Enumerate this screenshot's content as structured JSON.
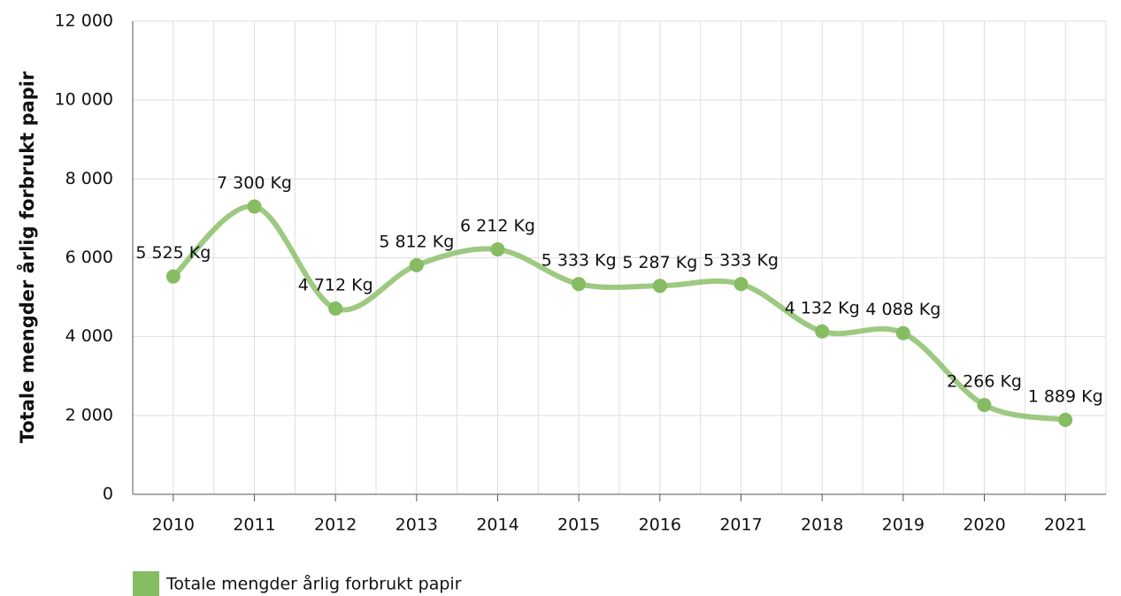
{
  "chart_data": {
    "type": "line",
    "ylabel": "Totale mengder årlig forbrukt papir",
    "categories": [
      "2010",
      "2011",
      "2012",
      "2013",
      "2014",
      "2015",
      "2016",
      "2017",
      "2018",
      "2019",
      "2020",
      "2021"
    ],
    "series": [
      {
        "name": "Totale mengder årlig forbrukt papir",
        "color": "#86bc62",
        "values": [
          5525,
          7300,
          4712,
          5812,
          6212,
          5333,
          5287,
          5333,
          4132,
          4088,
          2266,
          1889
        ],
        "value_labels": [
          "5 525 Kg",
          "7 300 Kg",
          "4 712 Kg",
          "5 812 Kg",
          "6 212 Kg",
          "5 333 Kg",
          "5 287 Kg",
          "5 333 Kg",
          "4 132 Kg",
          "4 088 Kg",
          "2 266 Kg",
          "1 889 Kg"
        ]
      }
    ],
    "ylim": [
      0,
      12000
    ],
    "yticks": [
      0,
      {
        "value": 2000,
        "label": "2 000"
      },
      {
        "value": 4000,
        "label": "4 000"
      },
      {
        "value": 6000,
        "label": "6 000"
      },
      {
        "value": 8000,
        "label": "8 000"
      },
      {
        "value": 10000,
        "label": "10 000"
      },
      {
        "value": 12000,
        "label": "12 000"
      }
    ],
    "grid": true,
    "legend": "bottom-left"
  }
}
